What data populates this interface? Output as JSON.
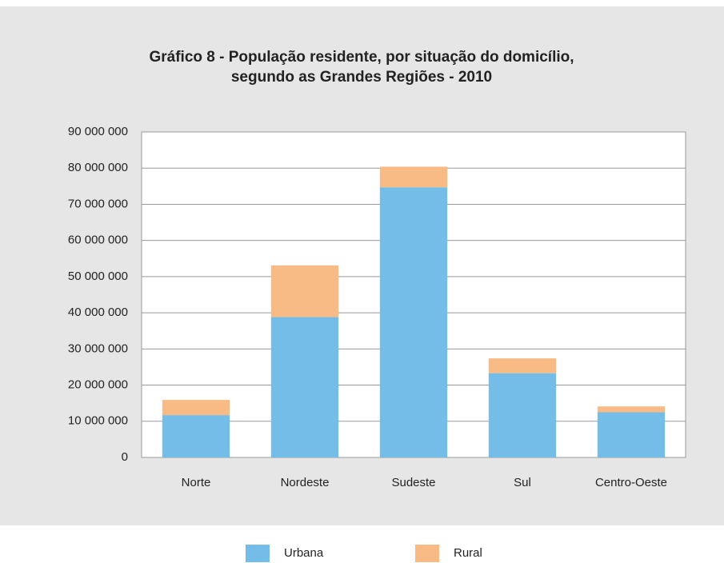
{
  "chart_data": {
    "type": "stacked_bar",
    "title": [
      "Gráfico 8 - População residente, por situação do domicílio,",
      "segundo as Grandes Regiões - 2010"
    ],
    "categories": [
      "Norte",
      "Nordeste",
      "Sudeste",
      "Sul",
      "Centro-Oeste"
    ],
    "series": [
      {
        "name": "Urbana",
        "color": "#74bde8",
        "values": [
          11700000,
          38800000,
          74700000,
          23300000,
          12500000
        ]
      },
      {
        "name": "Rural",
        "color": "#f9bb86",
        "values": [
          4200000,
          14300000,
          5700000,
          4100000,
          1600000
        ]
      }
    ],
    "ylim": [
      0,
      90000000
    ],
    "yticks": [
      0,
      {
        "value": 10000000,
        "label": "10 000 000"
      },
      {
        "value": 20000000,
        "label": "20 000 000"
      },
      {
        "value": 30000000,
        "label": "30 000 000"
      },
      {
        "value": 40000000,
        "label": "40 000 000"
      },
      {
        "value": 50000000,
        "label": "50 000 000"
      },
      {
        "value": 60000000,
        "label": "60 000 000"
      },
      {
        "value": 70000000,
        "label": "70 000 000"
      },
      {
        "value": 80000000,
        "label": "80 000 000"
      },
      {
        "value": 90000000,
        "label": "90 000 000"
      }
    ],
    "grid": true,
    "legend": "bottom"
  }
}
